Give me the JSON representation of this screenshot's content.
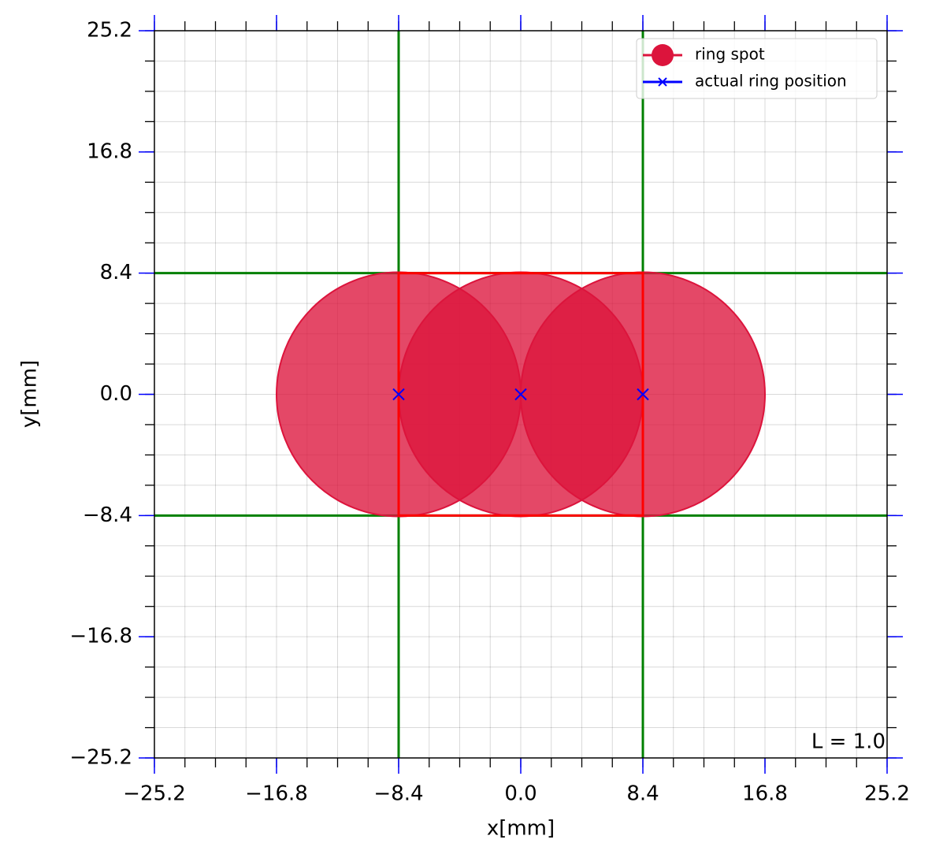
{
  "chart_data": {
    "type": "scatter",
    "x_label": "x[mm]",
    "y_label": "y[mm]",
    "annotation": "L = 1.0",
    "xlim": [
      -25.2,
      25.2
    ],
    "ylim": [
      -25.2,
      25.2
    ],
    "xticks": [
      {
        "value": -25.2,
        "label": "−25.2"
      },
      {
        "value": -16.8,
        "label": "−16.8"
      },
      {
        "value": -8.4,
        "label": "−8.4"
      },
      {
        "value": 0,
        "label": "0.0"
      },
      8.4,
      16.8,
      25.2
    ],
    "yticks": [
      {
        "value": -25.2,
        "label": "−25.2"
      },
      {
        "value": -16.8,
        "label": "−16.8"
      },
      {
        "value": -8.4,
        "label": "−8.4"
      },
      {
        "value": 0,
        "label": "0.0"
      },
      8.4,
      16.8,
      25.2
    ],
    "minor_tick_step": 2.1,
    "grid": true,
    "legend": "upper right",
    "series": [
      {
        "name": "ring spot",
        "color": "#dc143c",
        "marker": "circle",
        "x": [
          -8.4,
          0,
          8.4
        ],
        "values": [
          0,
          0,
          0
        ],
        "radius": [
          8.4,
          8.4,
          8.4
        ]
      },
      {
        "name": "actual ring position",
        "color": "#0000ff",
        "marker": "x",
        "x": [
          -8.4,
          0,
          8.4
        ],
        "values": [
          0,
          0,
          0
        ]
      }
    ],
    "guide_lines": {
      "color": "#008000",
      "x": [
        -8.4,
        8.4
      ],
      "y": [
        -8.4,
        8.4
      ]
    },
    "region": {
      "color": "#ff0000",
      "xlim": [
        -8.4,
        8.4
      ],
      "ylim": [
        -8.4,
        8.4
      ]
    }
  }
}
